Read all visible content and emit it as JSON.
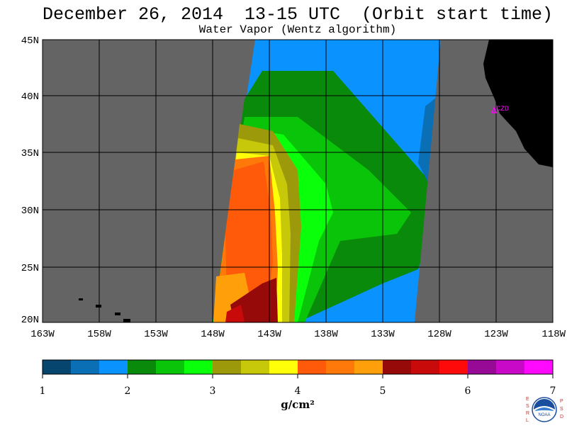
{
  "title": "December 26, 2014  13-15 UTC  (Orbit start time)",
  "subtitle": "Water Vapor (Wentz algorithm)",
  "latitude_labels": [
    "45N",
    "40N",
    "35N",
    "30N",
    "25N",
    "20N"
  ],
  "longitude_labels": [
    "163W",
    "158W",
    "153W",
    "148W",
    "143W",
    "138W",
    "133W",
    "128W",
    "123W",
    "118W"
  ],
  "station_label": "CZD",
  "colorbar": {
    "unit": "g/cm²",
    "tick_labels": [
      "1",
      "2",
      "3",
      "4",
      "5",
      "6",
      "7"
    ],
    "colors": [
      "#05456e",
      "#0a6fb4",
      "#0a92ff",
      "#0a8a0a",
      "#0ac40a",
      "#0aff0a",
      "#9c9a0a",
      "#c8c80a",
      "#ffff0a",
      "#ff5a0a",
      "#ff780a",
      "#ffa00a",
      "#960a0a",
      "#c80a0a",
      "#ff0a0a",
      "#960a96",
      "#c80ac8",
      "#ff0aff"
    ]
  },
  "colors": {
    "no_data": "#646464",
    "land": "#000000",
    "grid": "#000000",
    "station": "#ff00ff"
  },
  "logo": {
    "left_letters": [
      "E",
      "S",
      "R",
      "L"
    ],
    "right_letters": [
      "P",
      "S",
      "D"
    ],
    "center_text": "NOAA"
  }
}
